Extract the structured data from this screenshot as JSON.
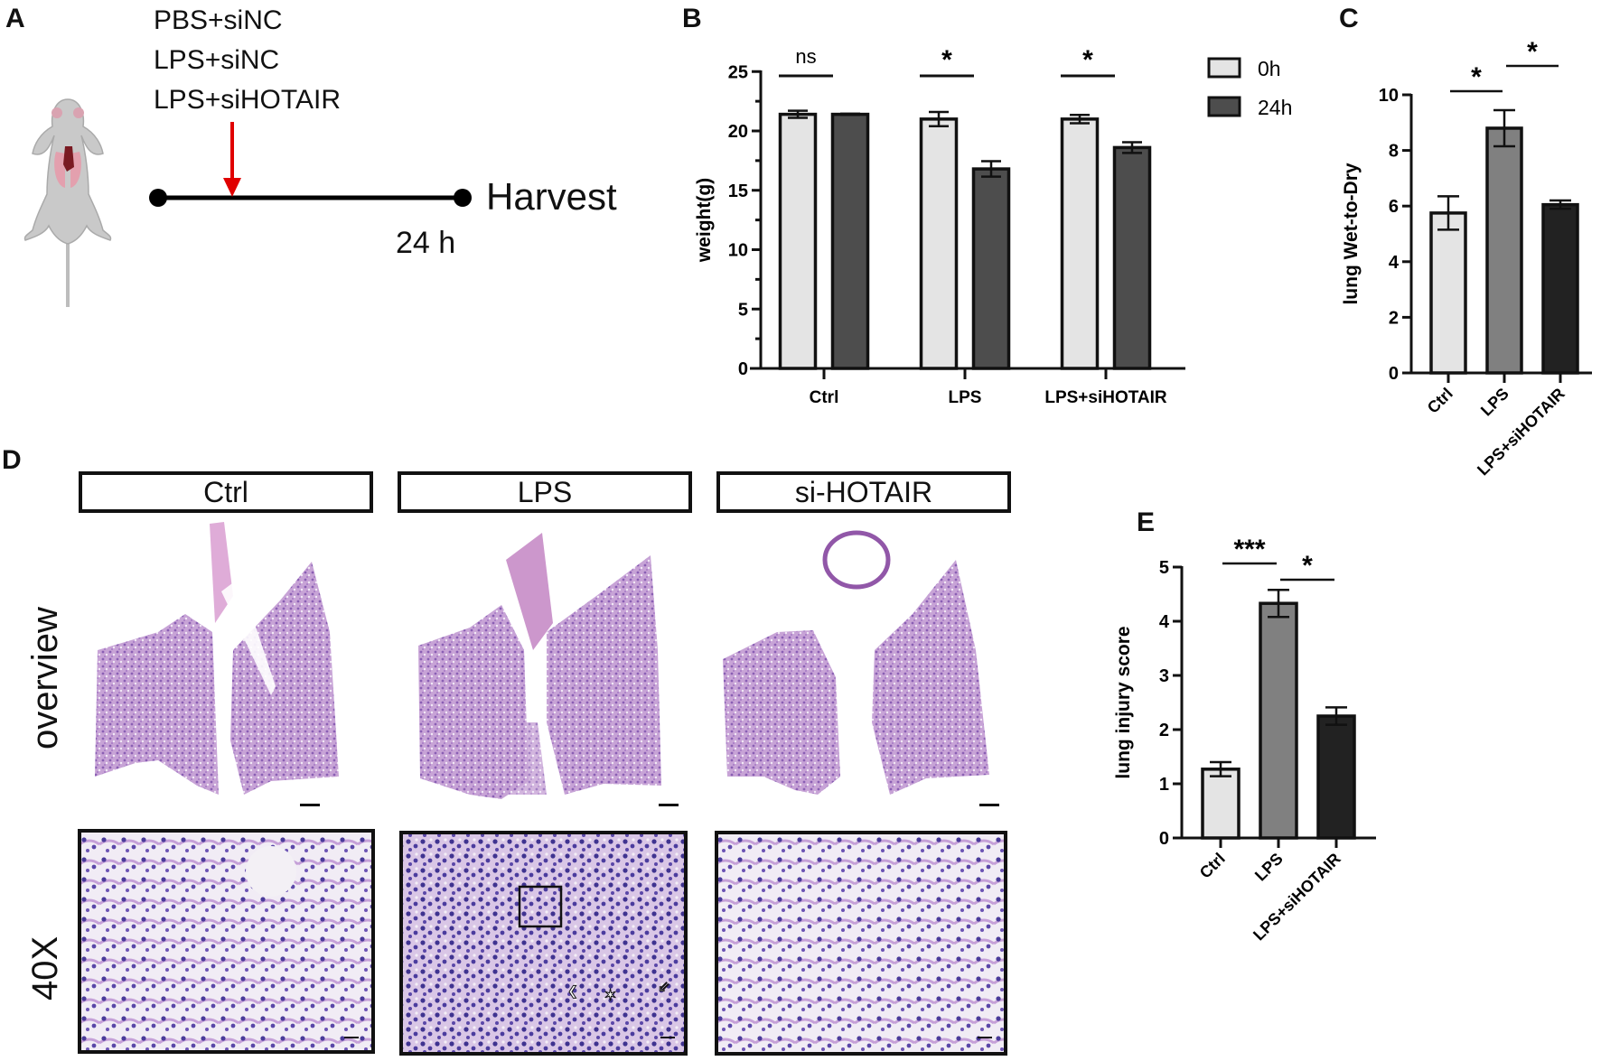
{
  "panels": {
    "A": {
      "letter": "A",
      "groups": [
        "PBS+siNC",
        "LPS+siNC",
        "LPS+siHOTAIR"
      ],
      "endpoint_label": "Harvest",
      "duration_label": "24 h",
      "arrow_color": "#e00000"
    },
    "B": {
      "letter": "B"
    },
    "C": {
      "letter": "C"
    },
    "D": {
      "letter": "D",
      "column_headers": [
        "Ctrl",
        "LPS",
        "si-HOTAIR"
      ],
      "row_labels": [
        "overview",
        "40X"
      ]
    },
    "E": {
      "letter": "E"
    }
  },
  "chart_data": [
    {
      "id": "B",
      "type": "bar",
      "title": "",
      "xlabel": "",
      "ylabel": "weight(g)",
      "categories": [
        "Ctrl",
        "LPS",
        "LPS+siHOTAIR"
      ],
      "series": [
        {
          "name": "0h",
          "color": "#e4e4e4",
          "values": [
            21.4,
            21.0,
            21.0
          ],
          "errors": [
            0.3,
            0.6,
            0.35
          ]
        },
        {
          "name": "24h",
          "color": "#4d4d4d",
          "values": [
            21.4,
            16.8,
            18.6
          ],
          "errors": [
            0.05,
            0.65,
            0.45
          ]
        }
      ],
      "yticks": [
        0,
        5,
        10,
        15,
        20,
        25
      ],
      "ylim": [
        0,
        25
      ],
      "significance": [
        "ns",
        "*",
        "*"
      ],
      "legend": [
        "0h",
        "24h"
      ],
      "legend_position": "top-right",
      "grid": false
    },
    {
      "id": "C",
      "type": "bar",
      "title": "",
      "xlabel": "",
      "ylabel": "lung Wet-to-Dry",
      "categories": [
        "Ctrl",
        "LPS",
        "LPS+siHOTAIR"
      ],
      "values": [
        5.75,
        8.8,
        6.05
      ],
      "errors": [
        0.6,
        0.65,
        0.15
      ],
      "colors": [
        "#e4e4e4",
        "#808080",
        "#222222"
      ],
      "yticks": [
        0,
        2,
        4,
        6,
        8,
        10
      ],
      "ylim": [
        0,
        10
      ],
      "significance": [
        {
          "pair": [
            "Ctrl",
            "LPS"
          ],
          "label": "*"
        },
        {
          "pair": [
            "LPS",
            "LPS+siHOTAIR"
          ],
          "label": "*"
        }
      ],
      "grid": false
    },
    {
      "id": "E",
      "type": "bar",
      "title": "",
      "xlabel": "",
      "ylabel": "lung injury score",
      "categories": [
        "Ctrl",
        "LPS",
        "LPS+siHOTAIR"
      ],
      "values": [
        1.27,
        4.33,
        2.25
      ],
      "errors": [
        0.13,
        0.25,
        0.16
      ],
      "colors": [
        "#e4e4e4",
        "#808080",
        "#222222"
      ],
      "yticks": [
        0,
        1,
        2,
        3,
        4,
        5
      ],
      "ylim": [
        0,
        5
      ],
      "significance": [
        {
          "pair": [
            "Ctrl",
            "LPS"
          ],
          "label": "***"
        },
        {
          "pair": [
            "LPS",
            "LPS+siHOTAIR"
          ],
          "label": "*"
        }
      ],
      "grid": false
    }
  ]
}
